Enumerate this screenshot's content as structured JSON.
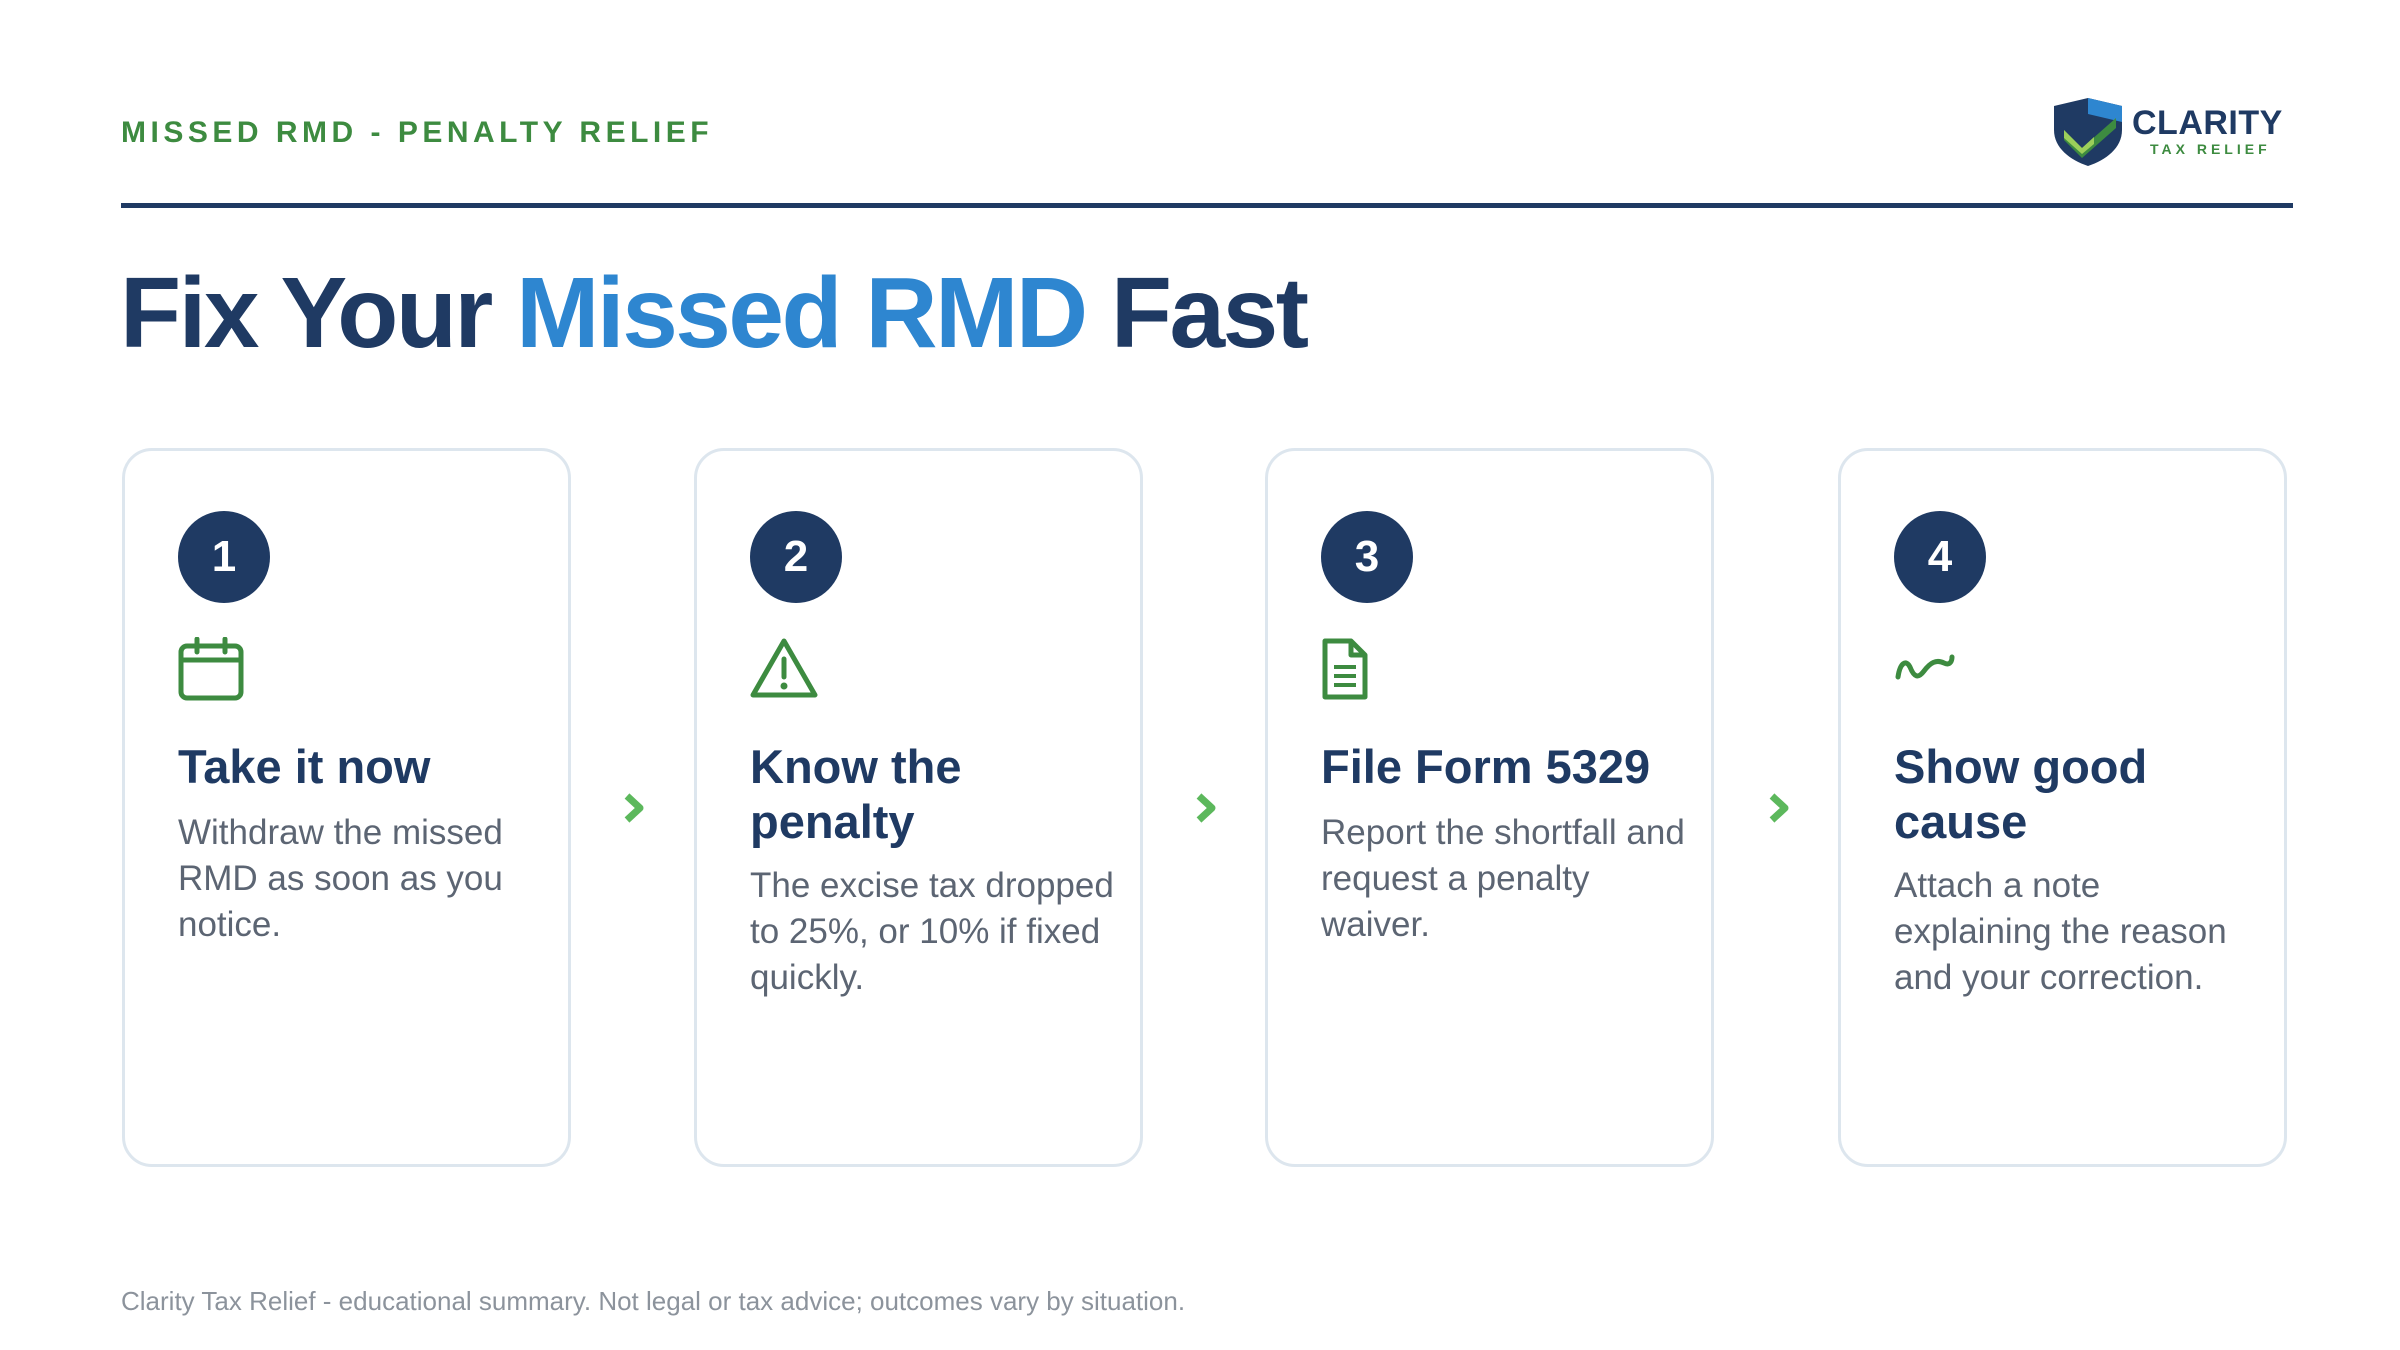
{
  "header": {
    "eyebrow": "MISSED RMD - PENALTY RELIEF",
    "logo": {
      "brand": "CLARITY",
      "sub": "TAX RELIEF",
      "icon": "shield-check-icon"
    }
  },
  "headline": {
    "part1": "Fix Your ",
    "accent": "Missed RMD",
    "part2": " Fast"
  },
  "steps": [
    {
      "num": "1",
      "icon": "calendar-icon",
      "title": "Take it now",
      "desc": "Withdraw the missed RMD as soon as you notice."
    },
    {
      "num": "2",
      "icon": "warning-icon",
      "title": "Know the penalty",
      "desc": "The excise tax dropped to 25%, or 10% if fixed quickly."
    },
    {
      "num": "3",
      "icon": "document-icon",
      "title": "File Form 5329",
      "desc": "Report the shortfall and request a penalty waiver."
    },
    {
      "num": "4",
      "icon": "signature-icon",
      "title": "Show good cause",
      "desc": "Attach a note explaining the reason and your correction."
    }
  ],
  "colors": {
    "navy": "#1f3a63",
    "blue": "#2e86d0",
    "green": "#3d8b40",
    "arrow": "#5cb85c"
  },
  "footer": "Clarity Tax Relief - educational summary. Not legal or tax advice; outcomes vary by situation."
}
